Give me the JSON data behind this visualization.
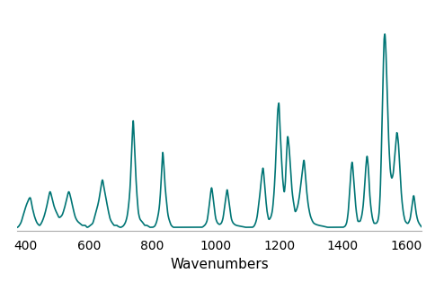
{
  "line_color": "#007575",
  "line_width": 1.2,
  "xlabel": "Wavenumbers",
  "xlabel_fontsize": 11,
  "xlim": [
    375,
    1650
  ],
  "ylim": [
    0,
    1.13
  ],
  "xticks": [
    400,
    600,
    800,
    1000,
    1200,
    1400,
    1600
  ],
  "background_color": "#ffffff",
  "keypoints": [
    [
      375,
      0.02
    ],
    [
      385,
      0.04
    ],
    [
      395,
      0.09
    ],
    [
      405,
      0.14
    ],
    [
      415,
      0.17
    ],
    [
      422,
      0.12
    ],
    [
      430,
      0.07
    ],
    [
      438,
      0.04
    ],
    [
      445,
      0.03
    ],
    [
      450,
      0.04
    ],
    [
      458,
      0.07
    ],
    [
      465,
      0.11
    ],
    [
      472,
      0.16
    ],
    [
      478,
      0.2
    ],
    [
      485,
      0.16
    ],
    [
      492,
      0.12
    ],
    [
      500,
      0.09
    ],
    [
      507,
      0.07
    ],
    [
      515,
      0.08
    ],
    [
      522,
      0.11
    ],
    [
      530,
      0.16
    ],
    [
      537,
      0.2
    ],
    [
      543,
      0.17
    ],
    [
      550,
      0.12
    ],
    [
      558,
      0.07
    ],
    [
      565,
      0.05
    ],
    [
      572,
      0.04
    ],
    [
      580,
      0.03
    ],
    [
      588,
      0.03
    ],
    [
      595,
      0.02
    ],
    [
      605,
      0.03
    ],
    [
      612,
      0.04
    ],
    [
      618,
      0.07
    ],
    [
      625,
      0.11
    ],
    [
      632,
      0.16
    ],
    [
      638,
      0.22
    ],
    [
      643,
      0.26
    ],
    [
      648,
      0.22
    ],
    [
      655,
      0.16
    ],
    [
      662,
      0.1
    ],
    [
      668,
      0.06
    ],
    [
      675,
      0.04
    ],
    [
      680,
      0.03
    ],
    [
      685,
      0.03
    ],
    [
      688,
      0.03
    ],
    [
      692,
      0.025
    ],
    [
      700,
      0.02
    ],
    [
      707,
      0.025
    ],
    [
      714,
      0.04
    ],
    [
      720,
      0.07
    ],
    [
      726,
      0.14
    ],
    [
      730,
      0.22
    ],
    [
      734,
      0.36
    ],
    [
      737,
      0.48
    ],
    [
      740,
      0.56
    ],
    [
      743,
      0.46
    ],
    [
      747,
      0.32
    ],
    [
      752,
      0.18
    ],
    [
      757,
      0.09
    ],
    [
      762,
      0.06
    ],
    [
      767,
      0.05
    ],
    [
      772,
      0.04
    ],
    [
      777,
      0.03
    ],
    [
      782,
      0.03
    ],
    [
      788,
      0.025
    ],
    [
      793,
      0.02
    ],
    [
      800,
      0.02
    ],
    [
      807,
      0.025
    ],
    [
      812,
      0.04
    ],
    [
      817,
      0.07
    ],
    [
      822,
      0.12
    ],
    [
      826,
      0.2
    ],
    [
      830,
      0.32
    ],
    [
      833,
      0.4
    ],
    [
      836,
      0.35
    ],
    [
      840,
      0.24
    ],
    [
      845,
      0.15
    ],
    [
      850,
      0.08
    ],
    [
      855,
      0.05
    ],
    [
      860,
      0.03
    ],
    [
      868,
      0.02
    ],
    [
      880,
      0.02
    ],
    [
      895,
      0.02
    ],
    [
      910,
      0.02
    ],
    [
      925,
      0.02
    ],
    [
      940,
      0.02
    ],
    [
      955,
      0.02
    ],
    [
      965,
      0.03
    ],
    [
      972,
      0.05
    ],
    [
      978,
      0.11
    ],
    [
      983,
      0.18
    ],
    [
      987,
      0.22
    ],
    [
      991,
      0.18
    ],
    [
      996,
      0.11
    ],
    [
      1001,
      0.06
    ],
    [
      1007,
      0.04
    ],
    [
      1012,
      0.035
    ],
    [
      1017,
      0.04
    ],
    [
      1022,
      0.06
    ],
    [
      1027,
      0.11
    ],
    [
      1032,
      0.17
    ],
    [
      1036,
      0.21
    ],
    [
      1040,
      0.17
    ],
    [
      1045,
      0.11
    ],
    [
      1050,
      0.06
    ],
    [
      1056,
      0.04
    ],
    [
      1065,
      0.03
    ],
    [
      1080,
      0.025
    ],
    [
      1095,
      0.02
    ],
    [
      1105,
      0.02
    ],
    [
      1115,
      0.02
    ],
    [
      1120,
      0.025
    ],
    [
      1125,
      0.04
    ],
    [
      1130,
      0.07
    ],
    [
      1135,
      0.13
    ],
    [
      1140,
      0.2
    ],
    [
      1145,
      0.28
    ],
    [
      1149,
      0.32
    ],
    [
      1153,
      0.26
    ],
    [
      1158,
      0.16
    ],
    [
      1163,
      0.09
    ],
    [
      1168,
      0.06
    ],
    [
      1173,
      0.07
    ],
    [
      1178,
      0.1
    ],
    [
      1183,
      0.18
    ],
    [
      1188,
      0.32
    ],
    [
      1192,
      0.48
    ],
    [
      1196,
      0.62
    ],
    [
      1199,
      0.65
    ],
    [
      1202,
      0.55
    ],
    [
      1207,
      0.38
    ],
    [
      1212,
      0.25
    ],
    [
      1216,
      0.2
    ],
    [
      1219,
      0.24
    ],
    [
      1223,
      0.38
    ],
    [
      1227,
      0.48
    ],
    [
      1231,
      0.43
    ],
    [
      1236,
      0.31
    ],
    [
      1241,
      0.2
    ],
    [
      1246,
      0.14
    ],
    [
      1251,
      0.1
    ],
    [
      1257,
      0.12
    ],
    [
      1263,
      0.17
    ],
    [
      1269,
      0.25
    ],
    [
      1274,
      0.32
    ],
    [
      1278,
      0.36
    ],
    [
      1282,
      0.3
    ],
    [
      1287,
      0.2
    ],
    [
      1293,
      0.12
    ],
    [
      1300,
      0.07
    ],
    [
      1310,
      0.04
    ],
    [
      1325,
      0.03
    ],
    [
      1340,
      0.025
    ],
    [
      1355,
      0.02
    ],
    [
      1370,
      0.02
    ],
    [
      1385,
      0.02
    ],
    [
      1400,
      0.02
    ],
    [
      1407,
      0.025
    ],
    [
      1412,
      0.04
    ],
    [
      1417,
      0.09
    ],
    [
      1422,
      0.2
    ],
    [
      1426,
      0.3
    ],
    [
      1430,
      0.35
    ],
    [
      1434,
      0.28
    ],
    [
      1439,
      0.17
    ],
    [
      1444,
      0.09
    ],
    [
      1449,
      0.05
    ],
    [
      1454,
      0.05
    ],
    [
      1459,
      0.07
    ],
    [
      1464,
      0.12
    ],
    [
      1469,
      0.22
    ],
    [
      1473,
      0.32
    ],
    [
      1477,
      0.38
    ],
    [
      1481,
      0.32
    ],
    [
      1485,
      0.2
    ],
    [
      1490,
      0.11
    ],
    [
      1495,
      0.06
    ],
    [
      1500,
      0.04
    ],
    [
      1505,
      0.04
    ],
    [
      1510,
      0.05
    ],
    [
      1514,
      0.08
    ],
    [
      1518,
      0.18
    ],
    [
      1522,
      0.4
    ],
    [
      1526,
      0.68
    ],
    [
      1529,
      0.88
    ],
    [
      1531,
      0.98
    ],
    [
      1533,
      1.0
    ],
    [
      1536,
      0.93
    ],
    [
      1539,
      0.77
    ],
    [
      1543,
      0.56
    ],
    [
      1547,
      0.4
    ],
    [
      1551,
      0.3
    ],
    [
      1555,
      0.27
    ],
    [
      1559,
      0.29
    ],
    [
      1563,
      0.36
    ],
    [
      1567,
      0.44
    ],
    [
      1571,
      0.5
    ],
    [
      1575,
      0.46
    ],
    [
      1579,
      0.36
    ],
    [
      1583,
      0.24
    ],
    [
      1588,
      0.14
    ],
    [
      1593,
      0.08
    ],
    [
      1598,
      0.05
    ],
    [
      1605,
      0.04
    ],
    [
      1612,
      0.06
    ],
    [
      1618,
      0.12
    ],
    [
      1624,
      0.18
    ],
    [
      1628,
      0.14
    ],
    [
      1632,
      0.09
    ],
    [
      1638,
      0.05
    ],
    [
      1645,
      0.03
    ],
    [
      1650,
      0.02
    ]
  ]
}
